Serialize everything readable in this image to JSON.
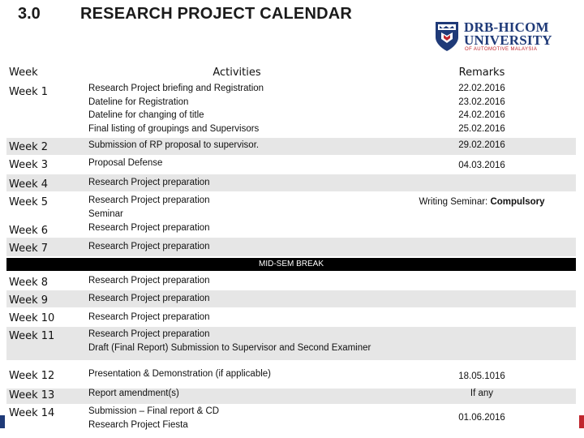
{
  "header": {
    "section_number": "3.0",
    "title": "RESEARCH PROJECT CALENDAR"
  },
  "logo": {
    "line1": "DRB-HICOM",
    "line2": "UNIVERSITY",
    "line3": "OF AUTOMOTIVE MALAYSIA",
    "icon": "university-shield-icon"
  },
  "table": {
    "columns": [
      "Week",
      "Activities",
      "Remarks"
    ],
    "rows": [
      {
        "week": "Week 1",
        "activities": [
          "Research Project briefing and Registration",
          "Dateline for Registration",
          "Dateline for changing of title",
          "Final listing of groupings and Supervisors"
        ],
        "remarks": [
          "22.02.2016",
          "23.02.2016",
          "24.02.2016",
          "25.02.2016"
        ]
      },
      {
        "week": "Week 2",
        "activities": [
          "Submission of RP proposal to supervisor."
        ],
        "remarks": [
          "29.02.2016"
        ]
      },
      {
        "week": "Week 3",
        "activities": [
          "Proposal Defense"
        ],
        "remarks": [
          "04.03.2016"
        ]
      },
      {
        "week": "Week 4",
        "activities": [
          "Research Project preparation"
        ],
        "remarks": []
      },
      {
        "week": "Week 5",
        "activities": [
          "Research Project preparation",
          "Seminar"
        ],
        "remarks": [
          "Writing Seminar:  ",
          "Compulsory"
        ]
      },
      {
        "week": "Week 6",
        "activities": [
          "Research Project preparation"
        ],
        "remarks": []
      },
      {
        "week": "Week 7",
        "activities": [
          "Research Project preparation"
        ],
        "remarks": []
      },
      {
        "week": "Week 8",
        "activities": [
          "Research Project preparation"
        ],
        "remarks": []
      },
      {
        "week": "Week 9",
        "activities": [
          "Research Project preparation"
        ],
        "remarks": []
      },
      {
        "week": "Week 10",
        "activities": [
          "Research Project preparation"
        ],
        "remarks": []
      },
      {
        "week": "Week 11",
        "activities": [
          "Research Project preparation",
          "Draft (Final Report)  Submission to Supervisor and Second Examiner"
        ],
        "remarks": []
      },
      {
        "week": "Week 12",
        "activities": [
          "Presentation & Demonstration (if applicable)"
        ],
        "remarks": [
          "18.05.1016"
        ]
      },
      {
        "week": "Week 13",
        "activities": [
          "Report amendment(s)"
        ],
        "remarks": [
          "If any"
        ]
      },
      {
        "week": "Week 14",
        "activities": [
          "Submission – Final report & CD",
          "Research Project Fiesta"
        ],
        "remarks": [
          "01.06.2016"
        ]
      }
    ],
    "mid_break": "MID-SEM BREAK"
  },
  "colors": {
    "row_shade": "#e6e6e6",
    "brand_blue": "#1f3a78",
    "brand_red": "#c0262d"
  }
}
